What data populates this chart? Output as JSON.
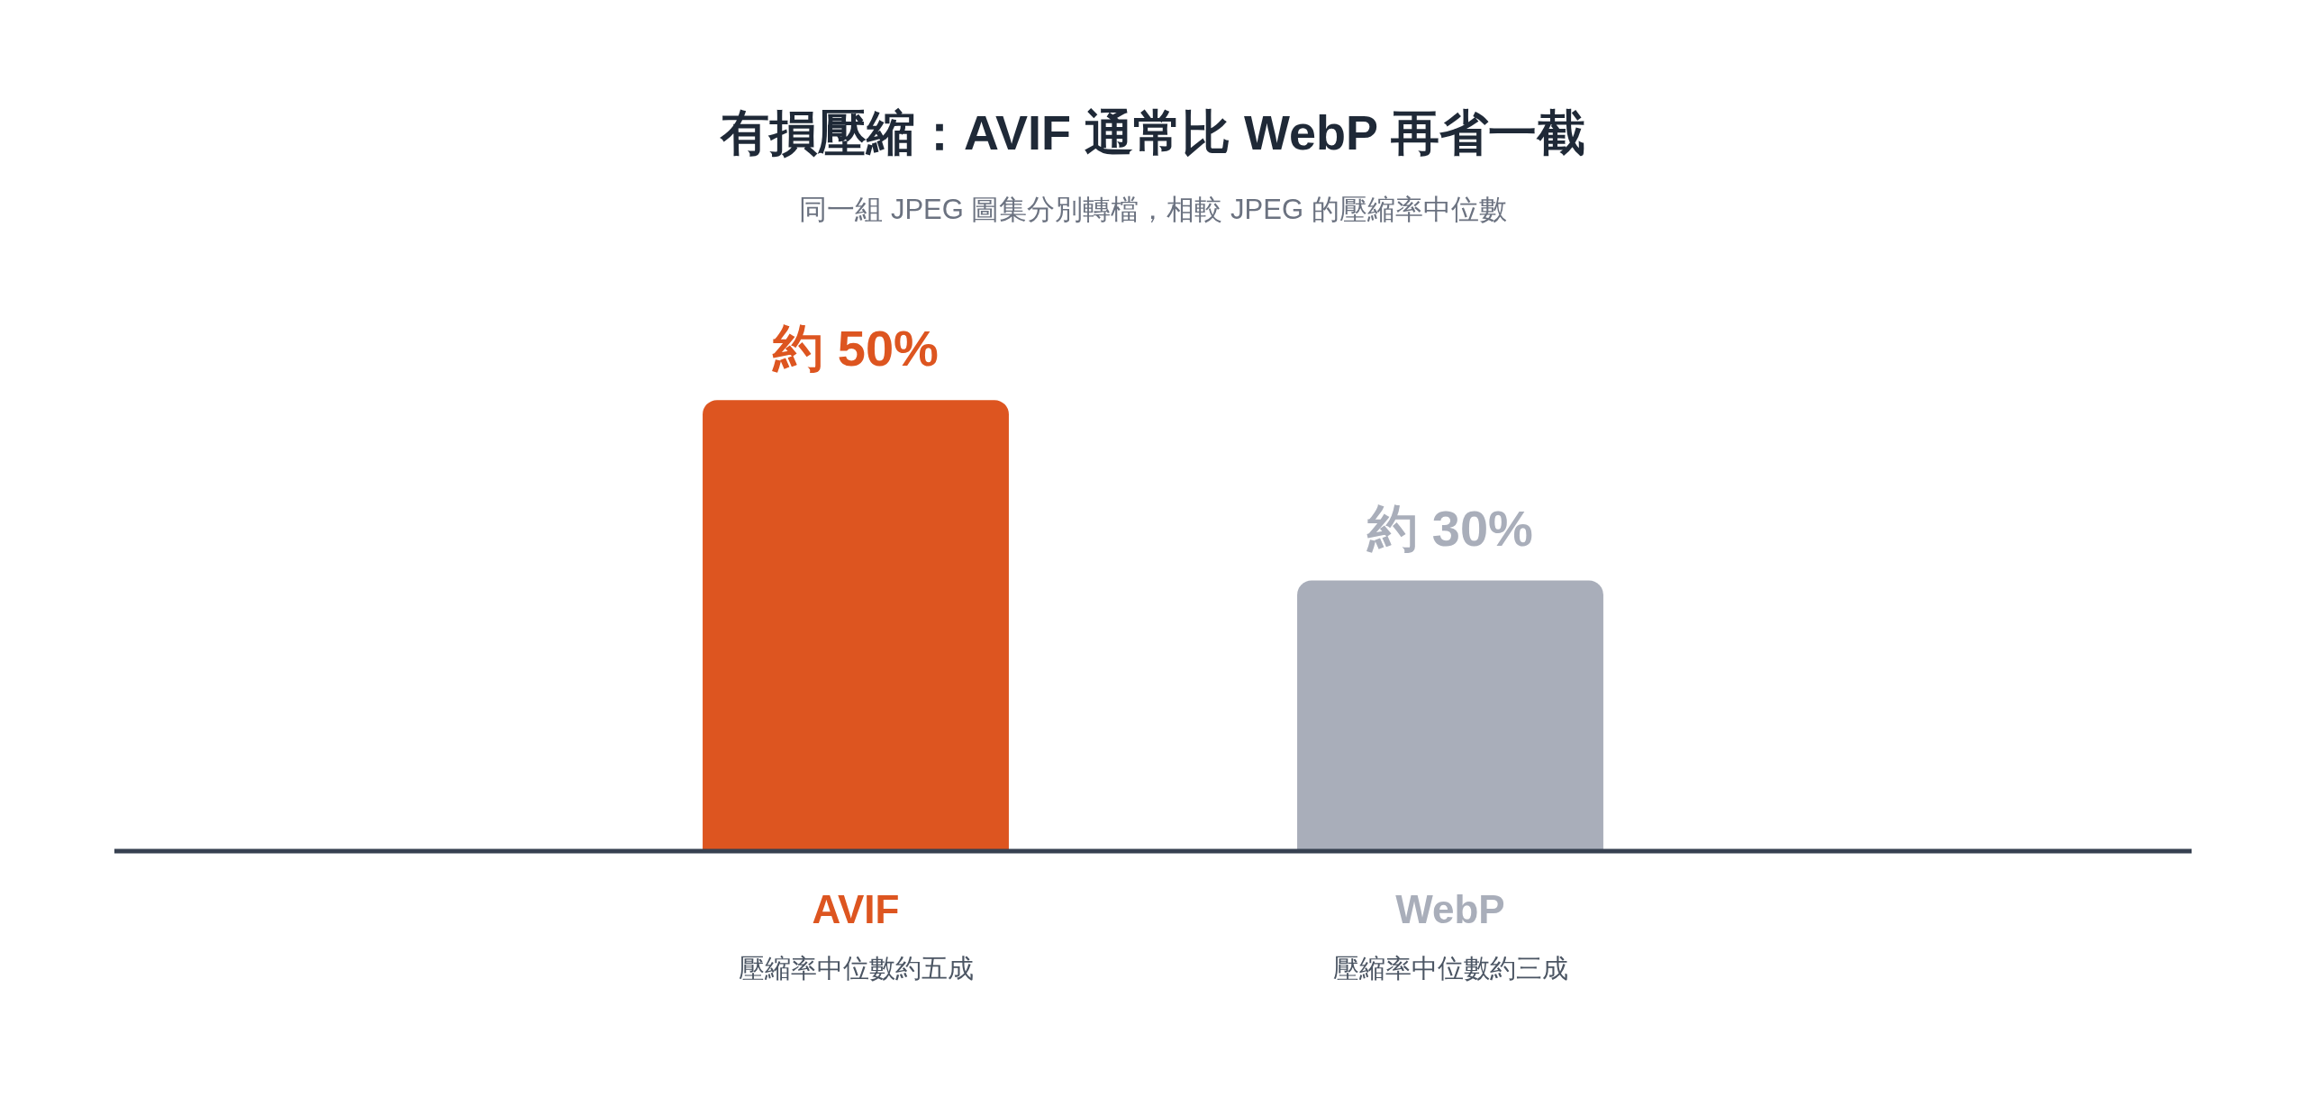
{
  "chart_data": {
    "type": "bar",
    "title": "有損壓縮：AVIF 通常比 WebP 再省一截",
    "subtitle": "同一組 JPEG 圖集分別轉檔，相較 JPEG 的壓縮率中位數",
    "categories": [
      "AVIF",
      "WebP"
    ],
    "values": [
      50,
      30
    ],
    "colors": [
      "#dd5520",
      "#a9aeba"
    ],
    "value_labels": [
      "約 50%",
      "約 30%"
    ],
    "legend": false,
    "annotations": [
      "壓縮率中位數約五成",
      "壓縮率中位數約三成"
    ]
  }
}
